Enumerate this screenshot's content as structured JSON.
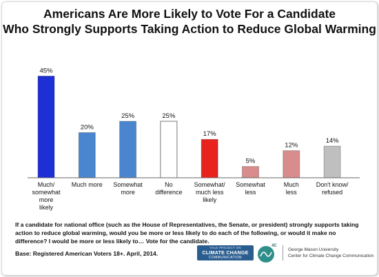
{
  "title_lines": [
    "Americans Are More Likely to Vote For a Candidate",
    "Who Strongly Supports Taking Action to Reduce Global Warming"
  ],
  "chart_data": {
    "type": "bar",
    "title": "Americans Are More Likely to Vote For a Candidate Who Strongly Supports Taking Action to Reduce Global Warming",
    "categories": [
      [
        "Much/",
        "somewhat",
        "more",
        "likely"
      ],
      [
        "Much more"
      ],
      [
        "Somewhat",
        "more"
      ],
      [
        "No",
        "difference"
      ],
      [
        "Somewhat/",
        "much less",
        "likely"
      ],
      [
        "Somewhat",
        "less"
      ],
      [
        "Much",
        "less"
      ],
      [
        "Don't know/",
        "refused"
      ]
    ],
    "values": [
      45,
      20,
      25,
      25,
      17,
      5,
      12,
      14
    ],
    "value_labels": [
      "45%",
      "20%",
      "25%",
      "25%",
      "17%",
      "5%",
      "12%",
      "14%"
    ],
    "colors": [
      "#1f2fd6",
      "#4a86cf",
      "#4a86cf",
      "#ffffff",
      "#e8221d",
      "#d98c8c",
      "#d98c8c",
      "#bfbfbf"
    ],
    "ylim": [
      0,
      50
    ],
    "grid": false,
    "legend": "none"
  },
  "footnote": {
    "question": "If a candidate for national office (such as the House of Representatives, the Senate, or president) strongly supports taking action to reduce global warming, would you be more or less likely to do each of the following, or would it make no difference? I would be more or less likely to… Vote for the candidate.",
    "base": "Base: Registered American Voters 18+. April, 2014."
  },
  "logos": {
    "yale": {
      "line1": "YALE PROJECT ON",
      "line2": "CLIMATE CHANGE",
      "line3": "COMMUNICATION"
    },
    "fourc": "4C",
    "gmu": [
      "George Mason University",
      "Center for Climate Change Communication"
    ]
  }
}
